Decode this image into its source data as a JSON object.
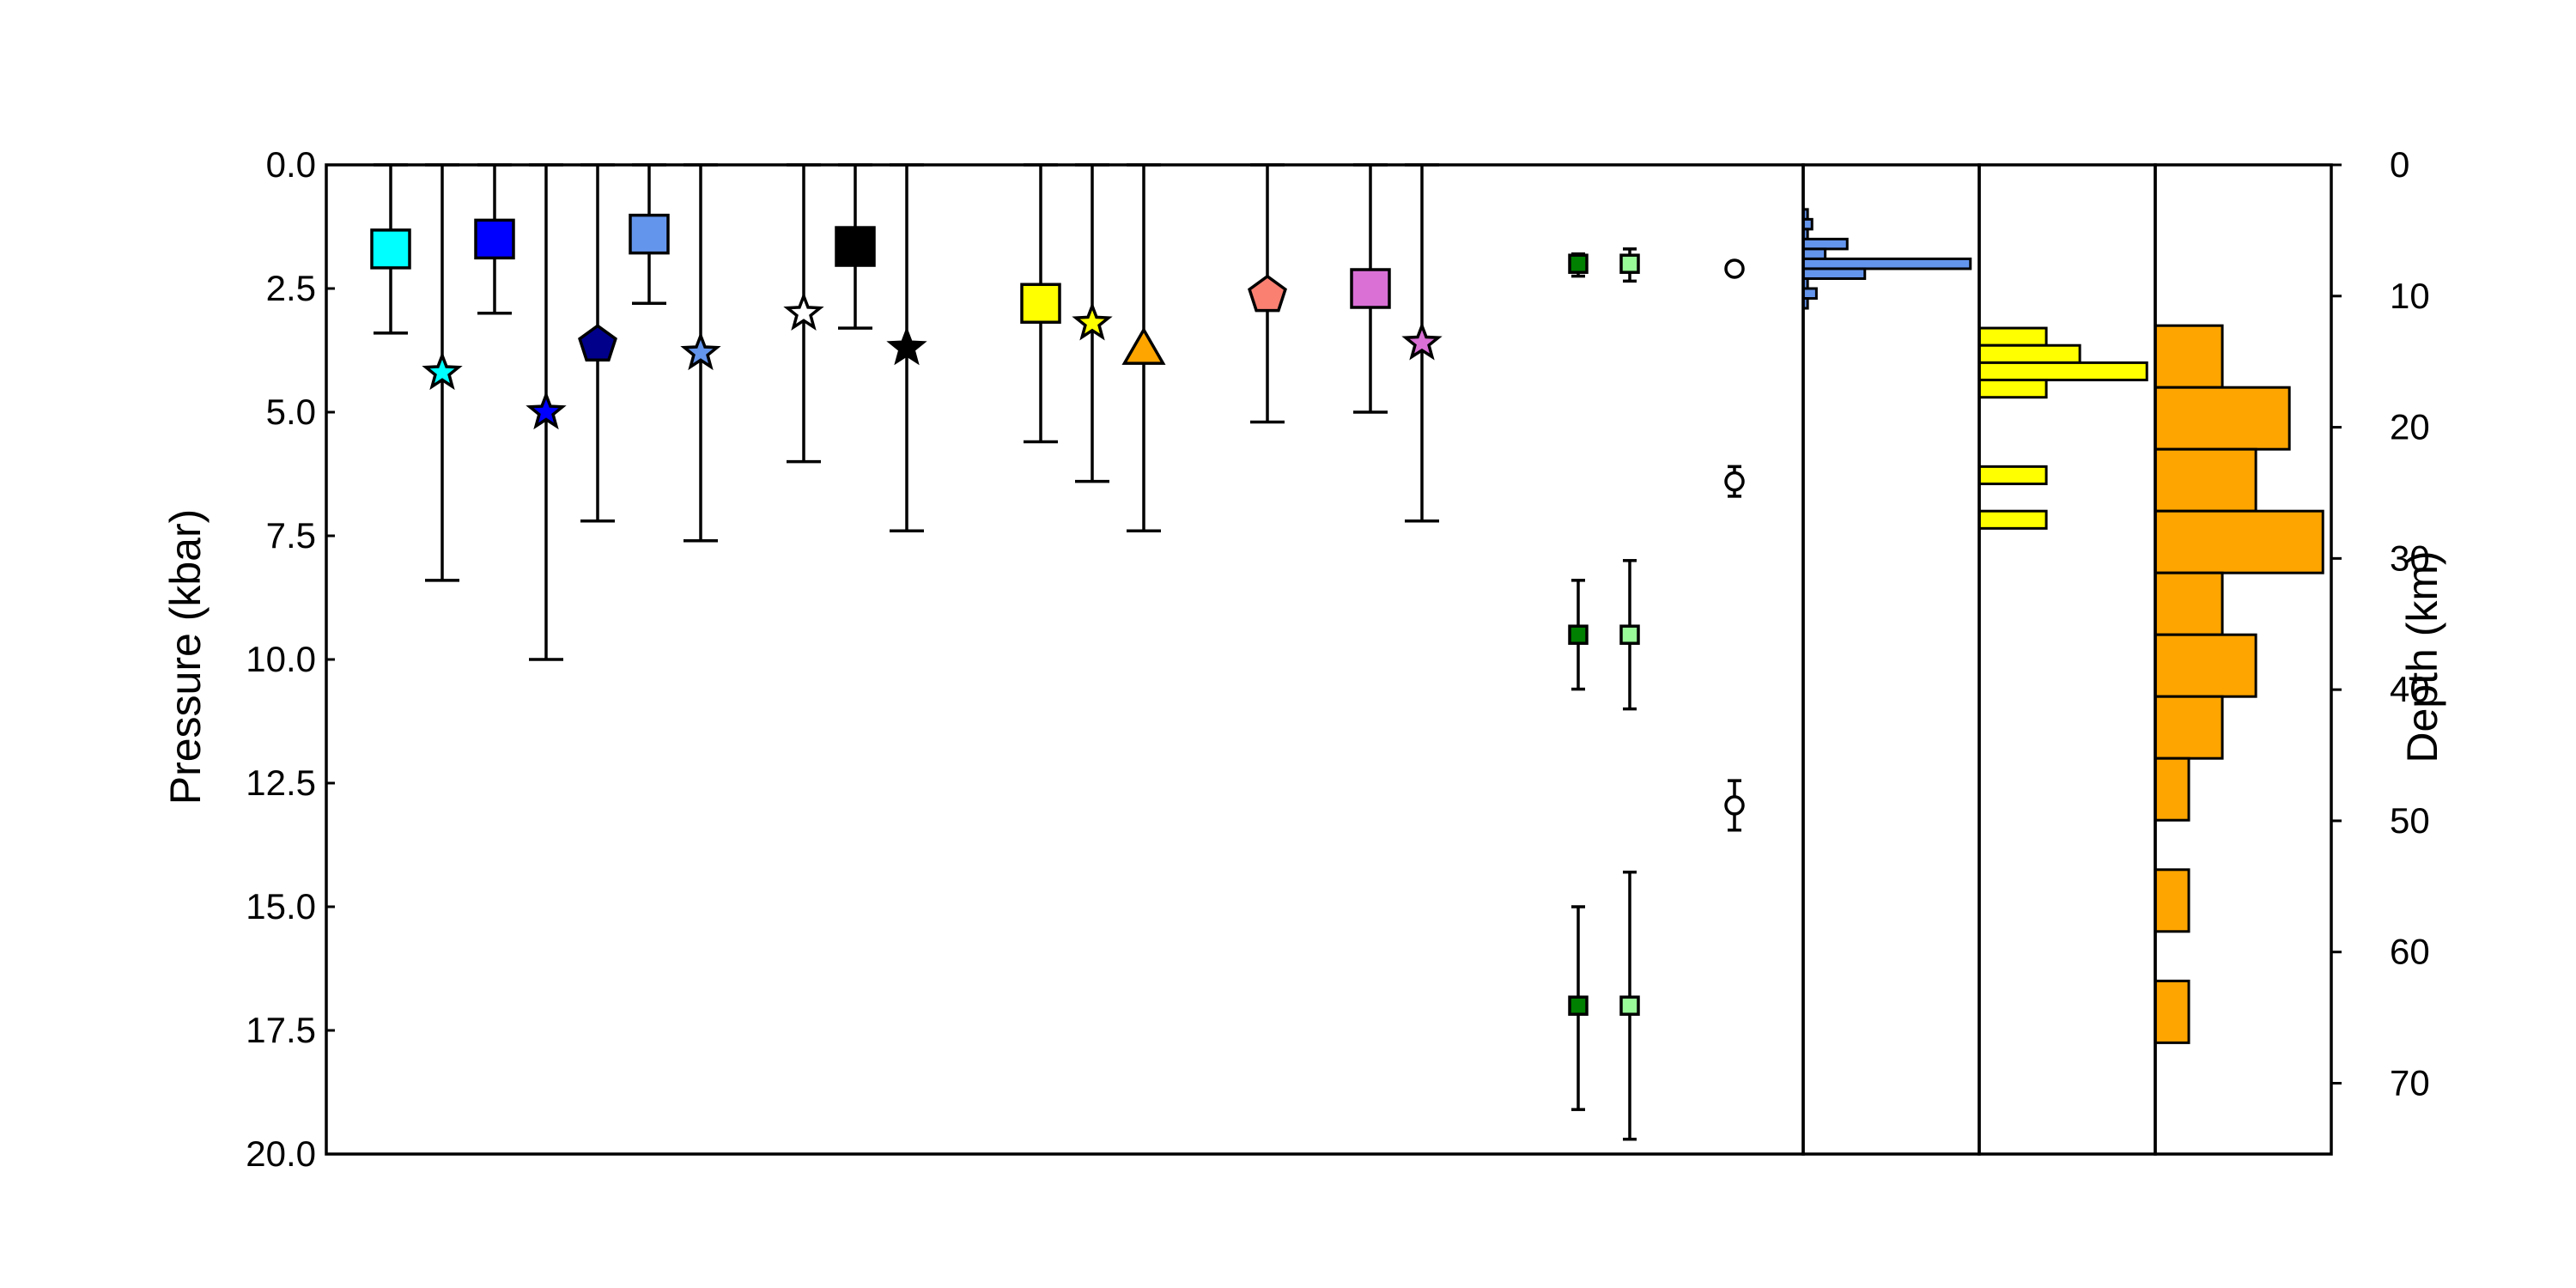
{
  "chart_data": {
    "type": "scatter",
    "ylabel": "Pressure (kbar)",
    "ylabel_right": "Depth (km)",
    "ylim": [
      20,
      0
    ],
    "yticks": [
      "0.0",
      "2.5",
      "5.0",
      "7.5",
      "10.0",
      "12.5",
      "15.0",
      "17.5",
      "20.0"
    ],
    "ylim_right": [
      75.4,
      0
    ],
    "yticks_right": [
      "0",
      "10",
      "20",
      "30",
      "40",
      "50",
      "60",
      "70"
    ],
    "grid": false,
    "series": [
      {
        "marker": "square",
        "color": "#00ffff",
        "y": 1.7,
        "err_low": 0,
        "err_high": 3.4
      },
      {
        "marker": "star",
        "color": "#00ffff",
        "y": 4.2,
        "err_low": 0,
        "err_high": 8.4
      },
      {
        "marker": "square",
        "color": "#0000ff",
        "y": 1.5,
        "err_low": 0,
        "err_high": 3.0
      },
      {
        "marker": "star",
        "color": "#0000ff",
        "y": 5.0,
        "err_low": 0,
        "err_high": 10.0
      },
      {
        "marker": "pentagon",
        "color": "#00008b",
        "y": 3.6,
        "err_low": 0,
        "err_high": 7.2
      },
      {
        "marker": "square",
        "color": "#6495ed",
        "y": 1.4,
        "err_low": 0,
        "err_high": 2.8
      },
      {
        "marker": "star",
        "color": "#6495ed",
        "y": 3.8,
        "err_low": 0,
        "err_high": 7.6
      },
      {
        "marker": "star",
        "color": "#ffffff",
        "y": 3.0,
        "err_low": 0,
        "err_high": 6.0
      },
      {
        "marker": "square",
        "color": "#000000",
        "y": 1.65,
        "err_low": 0,
        "err_high": 3.3
      },
      {
        "marker": "star",
        "color": "#000000",
        "y": 3.7,
        "err_low": 0,
        "err_high": 7.4
      },
      {
        "marker": "square",
        "color": "#ffff00",
        "y": 2.8,
        "err_low": 0,
        "err_high": 5.6
      },
      {
        "marker": "star",
        "color": "#ffff00",
        "y": 3.2,
        "err_low": 0,
        "err_high": 6.4
      },
      {
        "marker": "triangle",
        "color": "#ffa500",
        "y": 3.7,
        "err_low": 0,
        "err_high": 7.4
      },
      {
        "marker": "pentagon",
        "color": "#fa8072",
        "y": 2.6,
        "err_low": 0,
        "err_high": 5.2
      },
      {
        "marker": "square",
        "color": "#da70d6",
        "y": 2.5,
        "err_low": 0,
        "err_high": 5.0
      },
      {
        "marker": "star",
        "color": "#da70d6",
        "y": 3.6,
        "err_low": 0,
        "err_high": 7.2
      },
      {
        "marker": "small-square",
        "color": "#008000",
        "points": [
          {
            "y": 2.0,
            "err_low": 1.8,
            "err_high": 2.25
          },
          {
            "y": 9.5,
            "err_low": 8.4,
            "err_high": 10.6
          },
          {
            "y": 17.0,
            "err_low": 15.0,
            "err_high": 19.1
          }
        ]
      },
      {
        "marker": "small-square",
        "color": "#98fb98",
        "points": [
          {
            "y": 2.0,
            "err_low": 1.7,
            "err_high": 2.35
          },
          {
            "y": 9.5,
            "err_low": 8.0,
            "err_high": 11.0
          },
          {
            "y": 17.0,
            "err_low": 14.3,
            "err_high": 19.7
          }
        ]
      },
      {
        "marker": "circle",
        "color": "#ffffff",
        "points": [
          {
            "y": 2.1,
            "err_low": 2.1,
            "err_high": 2.1
          },
          {
            "y": 6.4,
            "err_low": 6.1,
            "err_high": 6.7
          },
          {
            "y": 12.95,
            "err_low": 12.45,
            "err_high": 13.45
          }
        ]
      }
    ],
    "histograms": [
      {
        "color": "#6495ed",
        "xmax": 40,
        "bins": [
          {
            "y0": 0.9,
            "y1": 1.1,
            "count": 1
          },
          {
            "y0": 1.1,
            "y1": 1.3,
            "count": 2
          },
          {
            "y0": 1.3,
            "y1": 1.5,
            "count": 1
          },
          {
            "y0": 1.5,
            "y1": 1.7,
            "count": 10
          },
          {
            "y0": 1.7,
            "y1": 1.9,
            "count": 5
          },
          {
            "y0": 1.9,
            "y1": 2.1,
            "count": 38
          },
          {
            "y0": 2.1,
            "y1": 2.3,
            "count": 14
          },
          {
            "y0": 2.3,
            "y1": 2.5,
            "count": 1
          },
          {
            "y0": 2.5,
            "y1": 2.7,
            "count": 3
          },
          {
            "y0": 2.7,
            "y1": 2.9,
            "count": 1
          }
        ]
      },
      {
        "color": "#ffff00",
        "xmax": 5.25,
        "bins": [
          {
            "y0": 3.3,
            "y1": 3.65,
            "count": 2
          },
          {
            "y0": 3.65,
            "y1": 4.0,
            "count": 3
          },
          {
            "y0": 4.0,
            "y1": 4.35,
            "count": 5
          },
          {
            "y0": 4.35,
            "y1": 4.7,
            "count": 2
          },
          {
            "y0": 6.1,
            "y1": 6.45,
            "count": 2
          },
          {
            "y0": 7.0,
            "y1": 7.35,
            "count": 2
          }
        ]
      },
      {
        "color": "#ffa500",
        "xmax": 5.25,
        "bins": [
          {
            "y0": 3.25,
            "y1": 4.5,
            "count": 2
          },
          {
            "y0": 4.5,
            "y1": 5.75,
            "count": 4
          },
          {
            "y0": 5.75,
            "y1": 7.0,
            "count": 3
          },
          {
            "y0": 7.0,
            "y1": 8.25,
            "count": 5
          },
          {
            "y0": 8.25,
            "y1": 9.5,
            "count": 2
          },
          {
            "y0": 9.5,
            "y1": 10.75,
            "count": 3
          },
          {
            "y0": 10.75,
            "y1": 12.0,
            "count": 2
          },
          {
            "y0": 12.0,
            "y1": 13.25,
            "count": 1
          },
          {
            "y0": 14.25,
            "y1": 15.5,
            "count": 1
          },
          {
            "y0": 16.5,
            "y1": 17.75,
            "count": 1
          }
        ]
      }
    ]
  }
}
